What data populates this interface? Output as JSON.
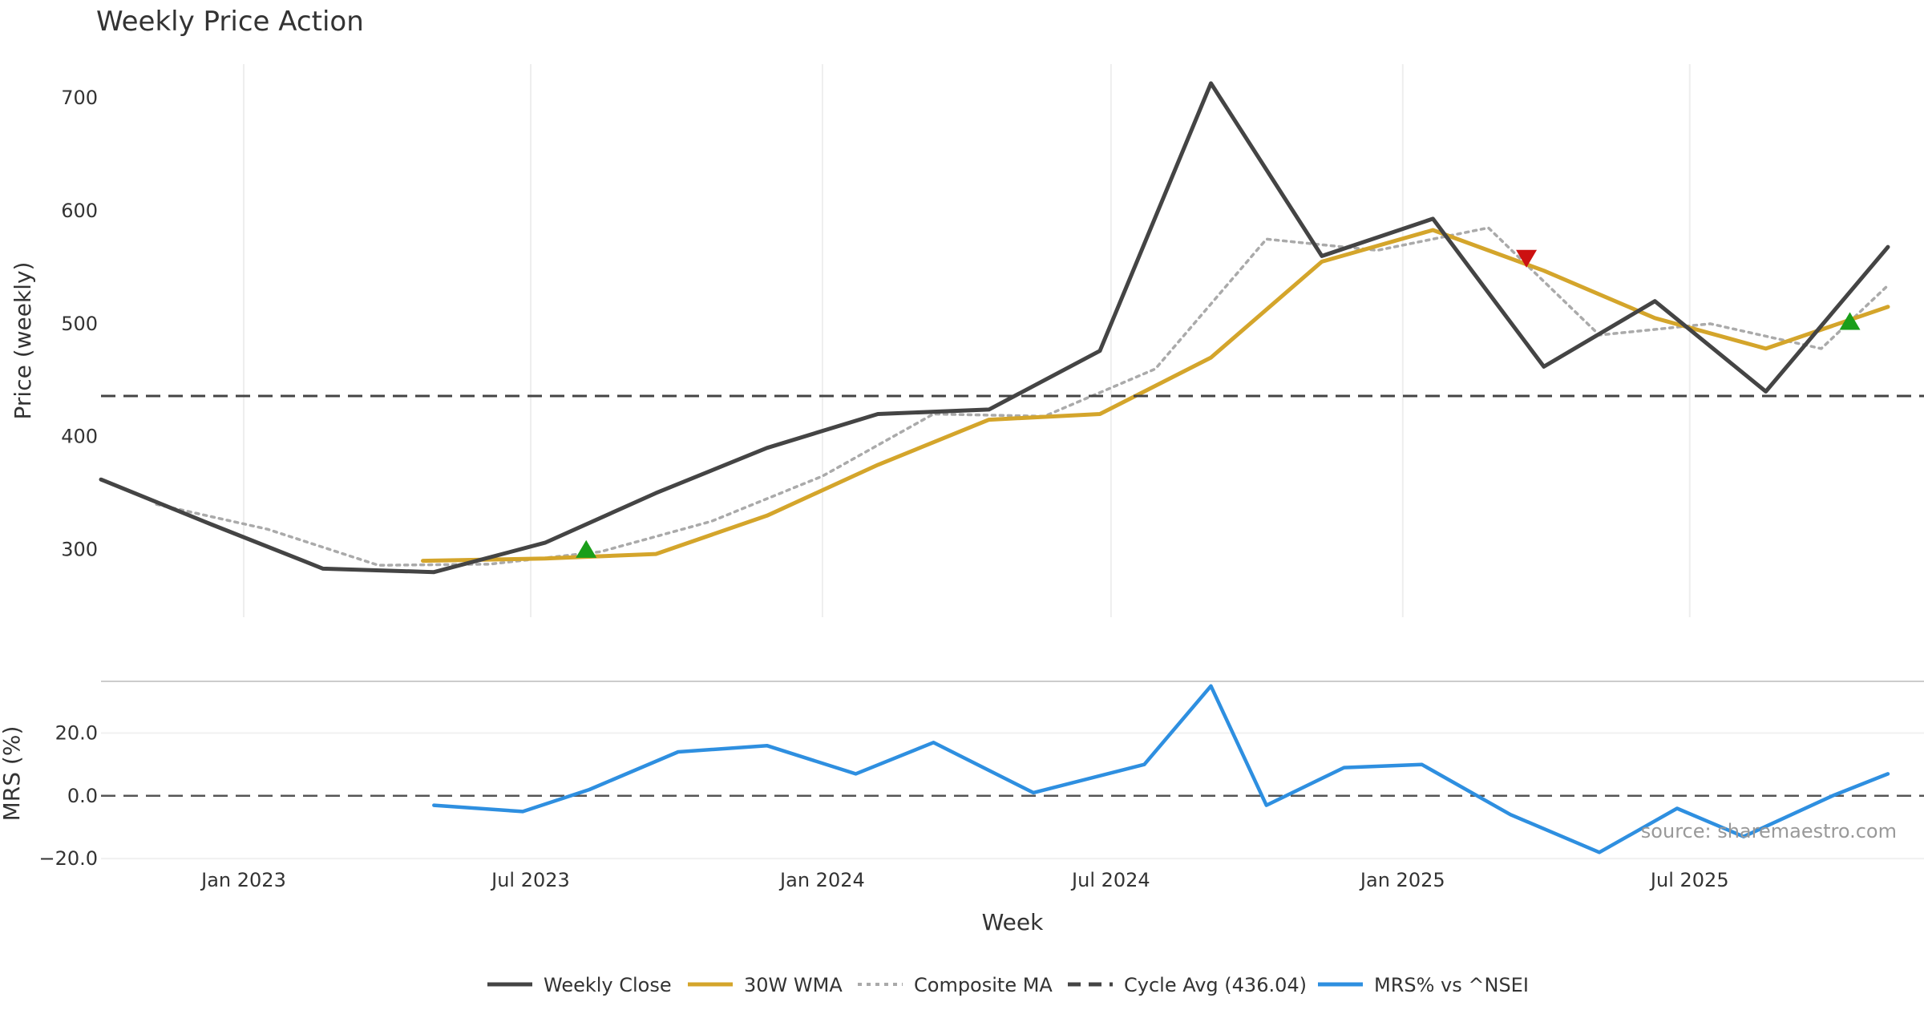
{
  "chart_data": [
    {
      "type": "line",
      "title": "Weekly Price Action",
      "ylabel": "Price (weekly)",
      "ylim": [
        240,
        730
      ],
      "y_ticks": [
        "300",
        "400",
        "500",
        "600",
        "700"
      ],
      "y_tick_values": [
        300,
        400,
        500,
        600,
        700
      ],
      "grid": "vertical",
      "x_start": "2022-10-03",
      "x_end": "2025-11-03",
      "x_ticks": [
        {
          "date": "2023-01-01",
          "label": "Jan 2023"
        },
        {
          "date": "2023-07-01",
          "label": "Jul 2023"
        },
        {
          "date": "2024-01-01",
          "label": "Jan 2024"
        },
        {
          "date": "2024-07-01",
          "label": "Jul 2024"
        },
        {
          "date": "2025-01-01",
          "label": "Jan 2025"
        },
        {
          "date": "2025-07-01",
          "label": "Jul 2025"
        }
      ],
      "series": [
        {
          "name": "Weekly Close",
          "color": "#444444",
          "style": "solid",
          "x": [
            "2022-10-03",
            "2022-12-12",
            "2023-02-20",
            "2023-05-01",
            "2023-07-10",
            "2023-09-18",
            "2023-11-27",
            "2024-02-05",
            "2024-04-15",
            "2024-06-24",
            "2024-09-02",
            "2024-11-11",
            "2025-01-20",
            "2025-03-31",
            "2025-06-09",
            "2025-08-18",
            "2025-11-03"
          ],
          "y": [
            362,
            322,
            283,
            280,
            306,
            350,
            390,
            420,
            424,
            476,
            713,
            560,
            593,
            462,
            520,
            440,
            568
          ]
        },
        {
          "name": "30W WMA",
          "color": "#D4A52B",
          "style": "solid",
          "x": [
            "2023-04-24",
            "2023-07-10",
            "2023-09-18",
            "2023-11-27",
            "2024-02-05",
            "2024-04-15",
            "2024-06-24",
            "2024-09-02",
            "2024-11-11",
            "2025-01-20",
            "2025-03-31",
            "2025-06-09",
            "2025-08-18",
            "2025-11-03"
          ],
          "y": [
            290,
            292,
            296,
            330,
            375,
            415,
            420,
            470,
            555,
            583,
            547,
            505,
            478,
            515
          ]
        },
        {
          "name": "Composite MA",
          "color": "#AAAAAA",
          "style": "dotted",
          "x": [
            "2022-11-07",
            "2023-01-16",
            "2023-03-27",
            "2023-06-05",
            "2023-08-14",
            "2023-10-23",
            "2024-01-01",
            "2024-03-11",
            "2024-05-20",
            "2024-07-29",
            "2024-10-07",
            "2024-12-16",
            "2025-02-24",
            "2025-05-05",
            "2025-07-14",
            "2025-09-22",
            "2025-11-03"
          ],
          "y": [
            340,
            318,
            286,
            287,
            298,
            325,
            365,
            420,
            418,
            460,
            575,
            565,
            585,
            490,
            500,
            478,
            534
          ]
        },
        {
          "name": "Cycle Avg (436.04)",
          "color": "#444444",
          "style": "dashed",
          "value": 436.04
        }
      ],
      "markers": [
        {
          "type": "buy",
          "x": "2023-08-05",
          "y": 300,
          "color": "#1A9E1A"
        },
        {
          "type": "sell",
          "x": "2025-03-20",
          "y": 558,
          "color": "#CC1111"
        },
        {
          "type": "buy",
          "x": "2025-10-10",
          "y": 502,
          "color": "#1A9E1A"
        }
      ]
    },
    {
      "type": "line",
      "ylabel": "MRS (%)",
      "xlabel": "Week",
      "ylim": [
        -21,
        37
      ],
      "y_ticks": [
        "20.0",
        "0.0",
        "−20.0"
      ],
      "y_tick_values": [
        20,
        0,
        -20
      ],
      "zero_line": 0,
      "series": [
        {
          "name": "MRS% vs ^NSEI",
          "color": "#2E8FE0",
          "style": "solid",
          "x": [
            "2023-05-01",
            "2023-06-26",
            "2023-08-07",
            "2023-10-02",
            "2023-11-27",
            "2024-01-22",
            "2024-03-11",
            "2024-05-13",
            "2024-07-22",
            "2024-09-02",
            "2024-10-07",
            "2024-11-25",
            "2025-01-13",
            "2025-03-10",
            "2025-05-05",
            "2025-06-23",
            "2025-08-04",
            "2025-09-29",
            "2025-11-03"
          ],
          "y": [
            -3,
            -5,
            2,
            14,
            16,
            7,
            17,
            1,
            10,
            35,
            -3,
            9,
            10,
            -6,
            -18,
            -4,
            -13,
            0,
            7
          ]
        }
      ]
    }
  ],
  "legend": [
    {
      "label": "Weekly Close",
      "color": "#444444",
      "style": "solid"
    },
    {
      "label": "30W WMA",
      "color": "#D4A52B",
      "style": "solid"
    },
    {
      "label": "Composite MA",
      "color": "#AAAAAA",
      "style": "dotted"
    },
    {
      "label": "Cycle Avg (436.04)",
      "color": "#444444",
      "style": "dashed"
    },
    {
      "label": "MRS% vs ^NSEI",
      "color": "#2E8FE0",
      "style": "solid"
    }
  ],
  "source": "source: sharemaestro.com"
}
